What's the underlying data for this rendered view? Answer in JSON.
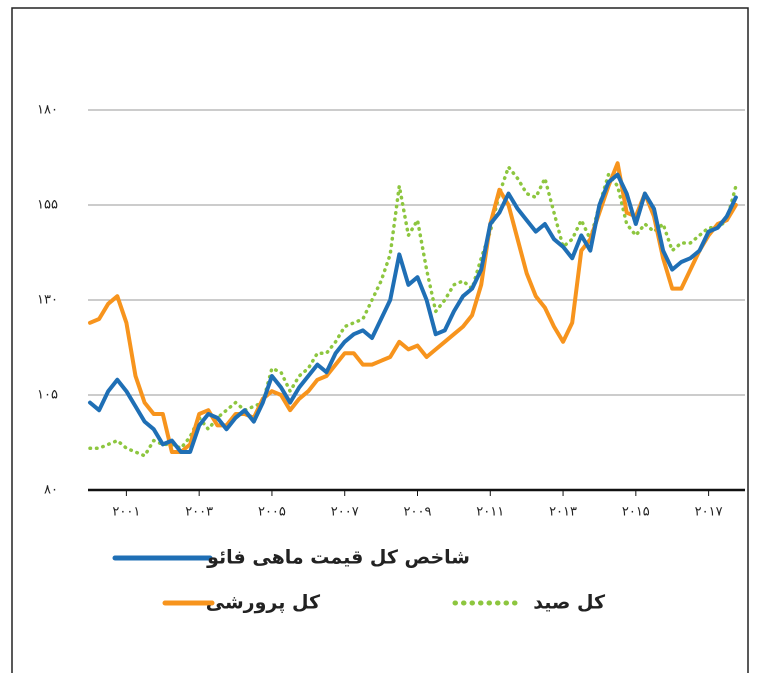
{
  "chart_data": {
    "type": "line",
    "x": [
      2000,
      2000.25,
      2000.5,
      2000.75,
      2001,
      2001.25,
      2001.5,
      2001.75,
      2002,
      2002.25,
      2002.5,
      2002.75,
      2003,
      2003.25,
      2003.5,
      2003.75,
      2004,
      2004.25,
      2004.5,
      2004.75,
      2005,
      2005.25,
      2005.5,
      2005.75,
      2006,
      2006.25,
      2006.5,
      2006.75,
      2007,
      2007.25,
      2007.5,
      2007.75,
      2008,
      2008.25,
      2008.5,
      2008.75,
      2009,
      2009.25,
      2009.5,
      2009.75,
      2010,
      2010.25,
      2010.5,
      2010.75,
      2011,
      2011.25,
      2011.5,
      2011.75,
      2012,
      2012.25,
      2012.5,
      2012.75,
      2013,
      2013.25,
      2013.5,
      2013.75,
      2014,
      2014.25,
      2014.5,
      2014.75,
      2015,
      2015.25,
      2015.5,
      2015.75,
      2016,
      2016.25,
      2016.5,
      2016.75,
      2017,
      2017.25,
      2017.5,
      2017.75
    ],
    "series": [
      {
        "name": "شاخص کل قیمت ماهی فائو",
        "color": "#1f6fb5",
        "style": "solid",
        "values": [
          103,
          101,
          106,
          109,
          106,
          102,
          98,
          96,
          92,
          93,
          90,
          90,
          97,
          100,
          99,
          96,
          99,
          101,
          98,
          103,
          110,
          107,
          103,
          107,
          110,
          113,
          111,
          116,
          119,
          121,
          122,
          120,
          125,
          130,
          142,
          134,
          136,
          130,
          121,
          122,
          127,
          131,
          133,
          138,
          150,
          153,
          158,
          154,
          151,
          148,
          150,
          146,
          144,
          141,
          147,
          143,
          155,
          161,
          163,
          158,
          150,
          158,
          154,
          143,
          138,
          140,
          141,
          143,
          148,
          149,
          152,
          157
        ]
      },
      {
        "name": "کل پرورشی",
        "color": "#f7941d",
        "style": "solid",
        "values": [
          124,
          125,
          129,
          131,
          124,
          110,
          103,
          100,
          100,
          90,
          90,
          92,
          100,
          101,
          97,
          97,
          100,
          100,
          99,
          104,
          106,
          105,
          101,
          104,
          106,
          109,
          110,
          113,
          116,
          116,
          113,
          113,
          114,
          115,
          119,
          117,
          118,
          115,
          117,
          119,
          121,
          123,
          126,
          134,
          150,
          159,
          155,
          146,
          137,
          131,
          128,
          123,
          119,
          124,
          143,
          146,
          153,
          160,
          166,
          153,
          152,
          158,
          152,
          141,
          133,
          133,
          138,
          143,
          147,
          150,
          151,
          155
        ]
      },
      {
        "name": "کل صید",
        "color": "#8dc63f",
        "style": "dotted",
        "values": [
          91,
          91,
          92,
          93,
          91,
          90,
          89,
          93,
          92,
          92,
          91,
          94,
          99,
          96,
          99,
          101,
          103,
          101,
          102,
          103,
          112,
          111,
          106,
          110,
          112,
          116,
          116,
          119,
          123,
          124,
          125,
          130,
          135,
          142,
          160,
          147,
          151,
          138,
          127,
          130,
          134,
          135,
          133,
          141,
          148,
          158,
          165,
          162,
          158,
          157,
          162,
          153,
          144,
          146,
          151,
          146,
          155,
          163,
          160,
          150,
          147,
          150,
          148,
          150,
          143,
          145,
          145,
          147,
          149,
          149,
          151,
          160
        ]
      }
    ],
    "xlim": [
      2000,
      2018
    ],
    "xticks": [
      {
        "value": 2001,
        "label": "۲۰۰۱"
      },
      {
        "value": 2003,
        "label": "۲۰۰۳"
      },
      {
        "value": 2005,
        "label": "۲۰۰۵"
      },
      {
        "value": 2007,
        "label": "۲۰۰۷"
      },
      {
        "value": 2009,
        "label": "۲۰۰۹"
      },
      {
        "value": 2011,
        "label": "۲۰۱۱"
      },
      {
        "value": 2013,
        "label": "۲۰۱۳"
      },
      {
        "value": 2015,
        "label": "۲۰۱۵"
      },
      {
        "value": 2017,
        "label": "۲۰۱۷"
      }
    ],
    "ylim": [
      80,
      180
    ],
    "yticks": [
      {
        "value": 80,
        "label": "۸۰"
      },
      {
        "value": 105,
        "label": "۱۰۵"
      },
      {
        "value": 130,
        "label": "۱۳۰"
      },
      {
        "value": 155,
        "label": "۱۵۵"
      },
      {
        "value": 180,
        "label": "۱۸۰"
      }
    ],
    "grid": true
  }
}
